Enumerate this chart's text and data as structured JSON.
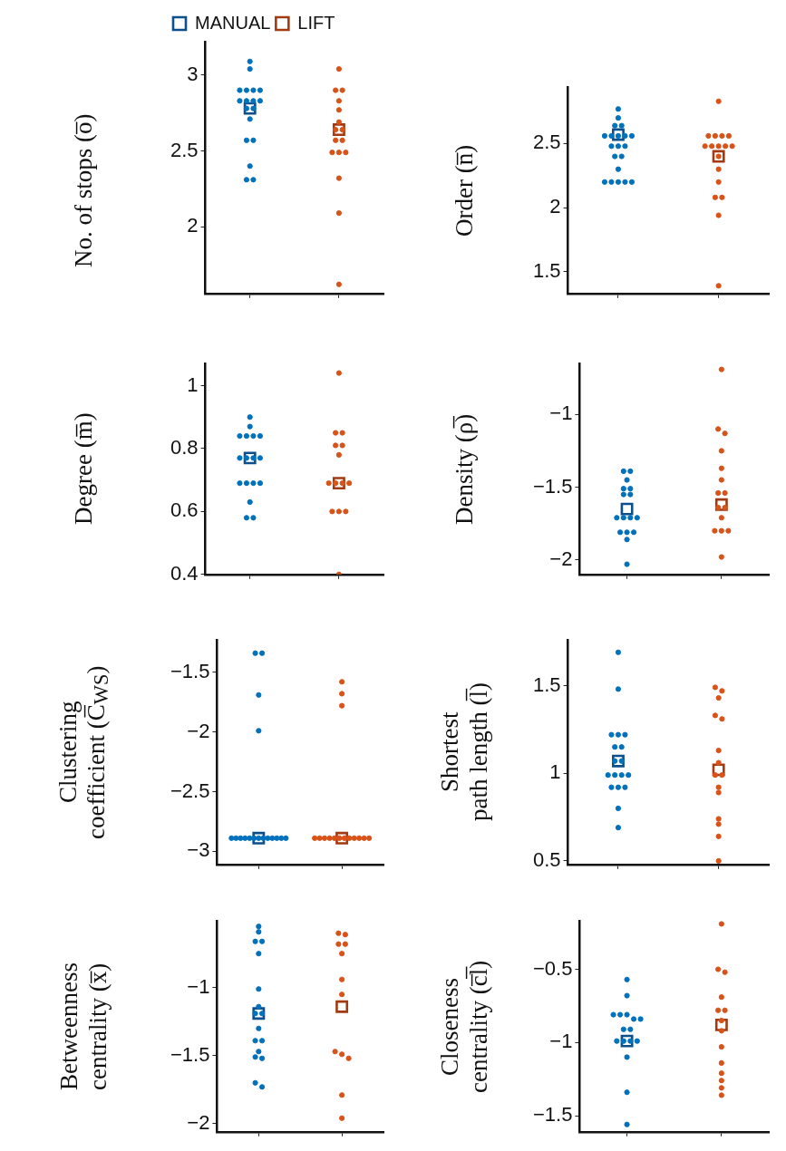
{
  "chart_data": [
    {
      "type": "scatter",
      "ylabel": "No. of stops (o̅)",
      "categories": [
        null,
        null
      ],
      "ylim": [
        1.56,
        3.22
      ],
      "yticks": [
        2,
        2.5,
        3
      ],
      "tick_labels": "y",
      "legend": "top",
      "series": [
        {
          "colors": [
            "#0072bd",
            "#d95319"
          ],
          "marker": "circle",
          "values": [
            3.09,
            3.04
          ]
        },
        {
          "colors": [
            "#0072bd",
            "#d95319"
          ],
          "marker": "circle",
          "values": [
            3.04,
            2.9
          ]
        },
        {
          "colors": [
            "#0072bd",
            "#d95319"
          ],
          "marker": "circle",
          "values": [
            2.9,
            2.9
          ]
        },
        {
          "colors": [
            "#0072bd",
            "#d95319"
          ],
          "marker": "circle",
          "values": [
            2.9,
            2.83
          ]
        },
        {
          "colors": [
            "#0072bd",
            "#d95319"
          ],
          "marker": "circle",
          "values": [
            2.9,
            2.77
          ]
        },
        {
          "colors": [
            "#0072bd",
            "#d95319"
          ],
          "marker": "circle",
          "values": [
            2.9,
            2.69
          ]
        },
        {
          "colors": [
            "#0072bd",
            "#d95319"
          ],
          "marker": "circle",
          "values": [
            2.83,
            2.64
          ]
        },
        {
          "colors": [
            "#0072bd",
            "#d95319"
          ],
          "marker": "circle",
          "values": [
            2.83,
            2.64
          ]
        },
        {
          "colors": [
            "#0072bd",
            "#d95319"
          ],
          "marker": "circle",
          "values": [
            2.83,
            2.57
          ]
        },
        {
          "colors": [
            "#0072bd",
            "#d95319"
          ],
          "marker": "circle",
          "values": [
            2.83,
            2.57
          ]
        },
        {
          "colors": [
            "#0072bd",
            "#d95319"
          ],
          "marker": "circle",
          "values": [
            2.78,
            2.49
          ]
        },
        {
          "colors": [
            "#0072bd",
            "#d95319"
          ],
          "marker": "circle",
          "values": [
            2.78,
            2.49
          ]
        },
        {
          "colors": [
            "#0072bd",
            "#d95319"
          ],
          "marker": "circle",
          "values": [
            2.71,
            2.49
          ]
        },
        {
          "colors": [
            "#0072bd",
            "#d95319"
          ],
          "marker": "circle",
          "values": [
            2.57,
            2.32
          ]
        },
        {
          "colors": [
            "#0072bd",
            "#d95319"
          ],
          "marker": "circle",
          "values": [
            2.57,
            2.09
          ]
        },
        {
          "colors": [
            "#0072bd",
            "#d95319"
          ],
          "marker": "circle",
          "values": [
            2.4,
            1.62
          ]
        },
        {
          "colors": [
            "#0072bd",
            "#d95319"
          ],
          "marker": "circle",
          "values": [
            2.31,
            null
          ]
        },
        {
          "colors": [
            "#0072bd",
            "#d95319"
          ],
          "marker": "circle",
          "values": [
            2.31,
            null
          ]
        },
        {
          "name": "MANUAL",
          "color": "#0b4f8c",
          "marker": "square",
          "values": [
            2.78,
            null
          ]
        },
        {
          "name": "LIFT",
          "color": "#a33a12",
          "marker": "square",
          "values": [
            null,
            2.64
          ]
        }
      ]
    },
    {
      "type": "scatter",
      "ylabel": "Order (n̅)",
      "categories": [
        null,
        null
      ],
      "ylim": [
        1.33,
        2.94
      ],
      "yticks": [
        1.5,
        2,
        2.5
      ],
      "tick_labels": "y",
      "series": [
        {
          "colors": [
            "#0072bd",
            "#d95319"
          ],
          "marker": "circle",
          "values": [
            2.77,
            2.83
          ]
        },
        {
          "colors": [
            "#0072bd",
            "#d95319"
          ],
          "marker": "circle",
          "values": [
            2.7,
            2.56
          ]
        },
        {
          "colors": [
            "#0072bd",
            "#d95319"
          ],
          "marker": "circle",
          "values": [
            2.64,
            2.56
          ]
        },
        {
          "colors": [
            "#0072bd",
            "#d95319"
          ],
          "marker": "circle",
          "values": [
            2.64,
            2.56
          ]
        },
        {
          "colors": [
            "#0072bd",
            "#d95319"
          ],
          "marker": "circle",
          "values": [
            2.56,
            2.56
          ]
        },
        {
          "colors": [
            "#0072bd",
            "#d95319"
          ],
          "marker": "circle",
          "values": [
            2.56,
            2.48
          ]
        },
        {
          "colors": [
            "#0072bd",
            "#d95319"
          ],
          "marker": "circle",
          "values": [
            2.56,
            2.48
          ]
        },
        {
          "colors": [
            "#0072bd",
            "#d95319"
          ],
          "marker": "circle",
          "values": [
            2.56,
            2.48
          ]
        },
        {
          "colors": [
            "#0072bd",
            "#d95319"
          ],
          "marker": "circle",
          "values": [
            2.56,
            2.48
          ]
        },
        {
          "colors": [
            "#0072bd",
            "#d95319"
          ],
          "marker": "circle",
          "values": [
            2.48,
            2.48
          ]
        },
        {
          "colors": [
            "#0072bd",
            "#d95319"
          ],
          "marker": "circle",
          "values": [
            2.48,
            2.4
          ]
        },
        {
          "colors": [
            "#0072bd",
            "#d95319"
          ],
          "marker": "circle",
          "values": [
            2.48,
            2.3
          ]
        },
        {
          "colors": [
            "#0072bd",
            "#d95319"
          ],
          "marker": "circle",
          "values": [
            2.4,
            2.2
          ]
        },
        {
          "colors": [
            "#0072bd",
            "#d95319"
          ],
          "marker": "circle",
          "values": [
            2.4,
            2.08
          ]
        },
        {
          "colors": [
            "#0072bd",
            "#d95319"
          ],
          "marker": "circle",
          "values": [
            2.3,
            2.08
          ]
        },
        {
          "colors": [
            "#0072bd",
            "#d95319"
          ],
          "marker": "circle",
          "values": [
            2.2,
            1.94
          ]
        },
        {
          "colors": [
            "#0072bd",
            "#d95319"
          ],
          "marker": "circle",
          "values": [
            2.2,
            1.39
          ]
        },
        {
          "colors": [
            "#0072bd",
            "#d95319"
          ],
          "marker": "circle",
          "values": [
            2.2,
            null
          ]
        },
        {
          "colors": [
            "#0072bd",
            "#d95319"
          ],
          "marker": "circle",
          "values": [
            2.2,
            null
          ]
        },
        {
          "colors": [
            "#0072bd",
            "#d95319"
          ],
          "marker": "circle",
          "values": [
            2.2,
            null
          ]
        },
        {
          "color": "#0b4f8c",
          "marker": "square",
          "values": [
            2.57,
            null
          ]
        },
        {
          "color": "#a33a12",
          "marker": "square",
          "values": [
            null,
            2.4
          ]
        }
      ]
    },
    {
      "type": "scatter",
      "ylabel": "Degree (m̅)",
      "categories": [
        null,
        null
      ],
      "ylim": [
        0.4,
        1.07
      ],
      "yticks": [
        0.4,
        0.6,
        0.8,
        1
      ],
      "tick_labels": "y",
      "series": [
        {
          "colors": [
            "#0072bd",
            "#d95319"
          ],
          "marker": "circle",
          "values": [
            0.9,
            1.04
          ]
        },
        {
          "colors": [
            "#0072bd",
            "#d95319"
          ],
          "marker": "circle",
          "values": [
            0.87,
            0.85
          ]
        },
        {
          "colors": [
            "#0072bd",
            "#d95319"
          ],
          "marker": "circle",
          "values": [
            0.84,
            0.85
          ]
        },
        {
          "colors": [
            "#0072bd",
            "#d95319"
          ],
          "marker": "circle",
          "values": [
            0.84,
            0.81
          ]
        },
        {
          "colors": [
            "#0072bd",
            "#d95319"
          ],
          "marker": "circle",
          "values": [
            0.84,
            0.81
          ]
        },
        {
          "colors": [
            "#0072bd",
            "#d95319"
          ],
          "marker": "circle",
          "values": [
            0.84,
            0.78
          ]
        },
        {
          "colors": [
            "#0072bd",
            "#d95319"
          ],
          "marker": "circle",
          "values": [
            0.77,
            0.69
          ]
        },
        {
          "colors": [
            "#0072bd",
            "#d95319"
          ],
          "marker": "circle",
          "values": [
            0.77,
            0.69
          ]
        },
        {
          "colors": [
            "#0072bd",
            "#d95319"
          ],
          "marker": "circle",
          "values": [
            0.77,
            0.69
          ]
        },
        {
          "colors": [
            "#0072bd",
            "#d95319"
          ],
          "marker": "circle",
          "values": [
            0.77,
            0.69
          ]
        },
        {
          "colors": [
            "#0072bd",
            "#d95319"
          ],
          "marker": "circle",
          "values": [
            0.69,
            0.6
          ]
        },
        {
          "colors": [
            "#0072bd",
            "#d95319"
          ],
          "marker": "circle",
          "values": [
            0.69,
            0.6
          ]
        },
        {
          "colors": [
            "#0072bd",
            "#d95319"
          ],
          "marker": "circle",
          "values": [
            0.69,
            0.6
          ]
        },
        {
          "colors": [
            "#0072bd",
            "#d95319"
          ],
          "marker": "circle",
          "values": [
            0.69,
            0.4
          ]
        },
        {
          "colors": [
            "#0072bd",
            "#d95319"
          ],
          "marker": "circle",
          "values": [
            0.63,
            null
          ]
        },
        {
          "colors": [
            "#0072bd",
            "#d95319"
          ],
          "marker": "circle",
          "values": [
            0.58,
            null
          ]
        },
        {
          "colors": [
            "#0072bd",
            "#d95319"
          ],
          "marker": "circle",
          "values": [
            0.58,
            null
          ]
        },
        {
          "color": "#0b4f8c",
          "marker": "square",
          "values": [
            0.77,
            null
          ]
        },
        {
          "color": "#a33a12",
          "marker": "square",
          "values": [
            null,
            0.69
          ]
        }
      ]
    },
    {
      "type": "scatter",
      "ylabel": "Density (ρ̅)",
      "categories": [
        null,
        null
      ],
      "ylim": [
        -2.1,
        -0.65
      ],
      "yticks": [
        -2,
        -1.5,
        -1
      ],
      "tick_labels": "y",
      "series": [
        {
          "colors": [
            "#0072bd",
            "#d95319"
          ],
          "marker": "circle",
          "values": [
            -1.39,
            -0.69
          ]
        },
        {
          "colors": [
            "#0072bd",
            "#d95319"
          ],
          "marker": "circle",
          "values": [
            -1.39,
            -1.1
          ]
        },
        {
          "colors": [
            "#0072bd",
            "#d95319"
          ],
          "marker": "circle",
          "values": [
            -1.45,
            -1.13
          ]
        },
        {
          "colors": [
            "#0072bd",
            "#d95319"
          ],
          "marker": "circle",
          "values": [
            -1.51,
            -1.25
          ]
        },
        {
          "colors": [
            "#0072bd",
            "#d95319"
          ],
          "marker": "circle",
          "values": [
            -1.51,
            -1.37
          ]
        },
        {
          "colors": [
            "#0072bd",
            "#d95319"
          ],
          "marker": "circle",
          "values": [
            -1.55,
            -1.45
          ]
        },
        {
          "colors": [
            "#0072bd",
            "#d95319"
          ],
          "marker": "circle",
          "values": [
            -1.55,
            -1.54
          ]
        },
        {
          "colors": [
            "#0072bd",
            "#d95319"
          ],
          "marker": "circle",
          "values": [
            -1.71,
            -1.54
          ]
        },
        {
          "colors": [
            "#0072bd",
            "#d95319"
          ],
          "marker": "circle",
          "values": [
            -1.71,
            -1.64
          ]
        },
        {
          "colors": [
            "#0072bd",
            "#d95319"
          ],
          "marker": "circle",
          "values": [
            -1.71,
            -1.64
          ]
        },
        {
          "colors": [
            "#0072bd",
            "#d95319"
          ],
          "marker": "circle",
          "values": [
            -1.71,
            -1.71
          ]
        },
        {
          "colors": [
            "#0072bd",
            "#d95319"
          ],
          "marker": "circle",
          "values": [
            -1.81,
            -1.8
          ]
        },
        {
          "colors": [
            "#0072bd",
            "#d95319"
          ],
          "marker": "circle",
          "values": [
            -1.81,
            -1.8
          ]
        },
        {
          "colors": [
            "#0072bd",
            "#d95319"
          ],
          "marker": "circle",
          "values": [
            -1.81,
            -1.8
          ]
        },
        {
          "colors": [
            "#0072bd",
            "#d95319"
          ],
          "marker": "circle",
          "values": [
            -1.86,
            -1.98
          ]
        },
        {
          "colors": [
            "#0072bd",
            "#d95319"
          ],
          "marker": "circle",
          "values": [
            -2.03,
            null
          ]
        },
        {
          "color": "#0b4f8c",
          "marker": "square",
          "values": [
            -1.65,
            null
          ]
        },
        {
          "color": "#a33a12",
          "marker": "square",
          "values": [
            null,
            -1.62
          ]
        }
      ]
    },
    {
      "type": "scatter",
      "ylabel": "Clustering\ncoefficient (C̅$_{WS}$)",
      "categories": [
        null,
        null
      ],
      "ylim": [
        -3.11,
        -1.23
      ],
      "yticks": [
        -3,
        -2.5,
        -2,
        -1.5
      ],
      "tick_labels": "y",
      "series": [
        {
          "colors": [
            "#0072bd",
            "#d95319"
          ],
          "marker": "circle",
          "values": [
            -1.34,
            -1.58
          ]
        },
        {
          "colors": [
            "#0072bd",
            "#d95319"
          ],
          "marker": "circle",
          "values": [
            -1.34,
            -1.68
          ]
        },
        {
          "colors": [
            "#0072bd",
            "#d95319"
          ],
          "marker": "circle",
          "values": [
            -1.69,
            -1.78
          ]
        },
        {
          "colors": [
            "#0072bd",
            "#d95319"
          ],
          "marker": "circle",
          "values": [
            -1.99,
            -2.89
          ]
        },
        {
          "colors": [
            "#0072bd",
            "#d95319"
          ],
          "marker": "circle",
          "values": [
            -2.89,
            -2.89
          ]
        },
        {
          "colors": [
            "#0072bd",
            "#d95319"
          ],
          "marker": "circle",
          "values": [
            -2.89,
            -2.89
          ]
        },
        {
          "colors": [
            "#0072bd",
            "#d95319"
          ],
          "marker": "circle",
          "values": [
            -2.89,
            -2.89
          ]
        },
        {
          "colors": [
            "#0072bd",
            "#d95319"
          ],
          "marker": "circle",
          "values": [
            -2.89,
            -2.89
          ]
        },
        {
          "colors": [
            "#0072bd",
            "#d95319"
          ],
          "marker": "circle",
          "values": [
            -2.89,
            -2.89
          ]
        },
        {
          "colors": [
            "#0072bd",
            "#d95319"
          ],
          "marker": "circle",
          "values": [
            -2.89,
            -2.89
          ]
        },
        {
          "colors": [
            "#0072bd",
            "#d95319"
          ],
          "marker": "circle",
          "values": [
            -2.89,
            -2.89
          ]
        },
        {
          "colors": [
            "#0072bd",
            "#d95319"
          ],
          "marker": "circle",
          "values": [
            -2.89,
            -2.89
          ]
        },
        {
          "colors": [
            "#0072bd",
            "#d95319"
          ],
          "marker": "circle",
          "values": [
            -2.89,
            -2.89
          ]
        },
        {
          "colors": [
            "#0072bd",
            "#d95319"
          ],
          "marker": "circle",
          "values": [
            -2.89,
            -2.89
          ]
        },
        {
          "colors": [
            "#0072bd",
            "#d95319"
          ],
          "marker": "circle",
          "values": [
            -2.89,
            -2.89
          ]
        },
        {
          "colors": [
            "#0072bd",
            "#d95319"
          ],
          "marker": "circle",
          "values": [
            -2.89,
            null
          ]
        },
        {
          "colors": [
            "#0072bd",
            "#d95319"
          ],
          "marker": "circle",
          "values": [
            -2.89,
            null
          ]
        },
        {
          "color": "#0b4f8c",
          "marker": "square",
          "values": [
            -2.89,
            null
          ]
        },
        {
          "color": "#a33a12",
          "marker": "square",
          "values": [
            null,
            -2.89
          ]
        }
      ]
    },
    {
      "type": "scatter",
      "ylabel": "Shortest\npath length (l̅)",
      "categories": [
        null,
        null
      ],
      "ylim": [
        0.48,
        1.76
      ],
      "yticks": [
        0.5,
        1,
        1.5
      ],
      "tick_labels": "y",
      "series": [
        {
          "colors": [
            "#0072bd",
            "#d95319"
          ],
          "marker": "circle",
          "values": [
            1.69,
            1.49
          ]
        },
        {
          "colors": [
            "#0072bd",
            "#d95319"
          ],
          "marker": "circle",
          "values": [
            1.48,
            1.47
          ]
        },
        {
          "colors": [
            "#0072bd",
            "#d95319"
          ],
          "marker": "circle",
          "values": [
            1.22,
            1.43
          ]
        },
        {
          "colors": [
            "#0072bd",
            "#d95319"
          ],
          "marker": "circle",
          "values": [
            1.22,
            1.33
          ]
        },
        {
          "colors": [
            "#0072bd",
            "#d95319"
          ],
          "marker": "circle",
          "values": [
            1.22,
            1.31
          ]
        },
        {
          "colors": [
            "#0072bd",
            "#d95319"
          ],
          "marker": "circle",
          "values": [
            1.15,
            1.13
          ]
        },
        {
          "colors": [
            "#0072bd",
            "#d95319"
          ],
          "marker": "circle",
          "values": [
            1.15,
            1.06
          ]
        },
        {
          "colors": [
            "#0072bd",
            "#d95319"
          ],
          "marker": "circle",
          "values": [
            1.07,
            0.99
          ]
        },
        {
          "colors": [
            "#0072bd",
            "#d95319"
          ],
          "marker": "circle",
          "values": [
            1.07,
            0.99
          ]
        },
        {
          "colors": [
            "#0072bd",
            "#d95319"
          ],
          "marker": "circle",
          "values": [
            0.99,
            0.92
          ]
        },
        {
          "colors": [
            "#0072bd",
            "#d95319"
          ],
          "marker": "circle",
          "values": [
            0.99,
            0.89
          ]
        },
        {
          "colors": [
            "#0072bd",
            "#d95319"
          ],
          "marker": "circle",
          "values": [
            0.99,
            0.74
          ]
        },
        {
          "colors": [
            "#0072bd",
            "#d95319"
          ],
          "marker": "circle",
          "values": [
            0.99,
            0.71
          ]
        },
        {
          "colors": [
            "#0072bd",
            "#d95319"
          ],
          "marker": "circle",
          "values": [
            0.92,
            0.64
          ]
        },
        {
          "colors": [
            "#0072bd",
            "#d95319"
          ],
          "marker": "circle",
          "values": [
            0.92,
            0.5
          ]
        },
        {
          "colors": [
            "#0072bd",
            "#d95319"
          ],
          "marker": "circle",
          "values": [
            0.92,
            null
          ]
        },
        {
          "colors": [
            "#0072bd",
            "#d95319"
          ],
          "marker": "circle",
          "values": [
            0.8,
            null
          ]
        },
        {
          "colors": [
            "#0072bd",
            "#d95319"
          ],
          "marker": "circle",
          "values": [
            0.69,
            null
          ]
        },
        {
          "color": "#0b4f8c",
          "marker": "square",
          "values": [
            1.07,
            null
          ]
        },
        {
          "color": "#a33a12",
          "marker": "square",
          "values": [
            null,
            1.02
          ]
        }
      ]
    },
    {
      "type": "scatter",
      "ylabel": "Betweenness\ncentrality (x̅)",
      "categories": [
        null,
        null
      ],
      "ylim": [
        -2.06,
        -0.51
      ],
      "yticks": [
        -2,
        -1.5,
        -1
      ],
      "tick_labels": "y",
      "series": [
        {
          "colors": [
            "#0072bd",
            "#d95319"
          ],
          "marker": "circle",
          "values": [
            -0.55,
            -0.61
          ]
        },
        {
          "colors": [
            "#0072bd",
            "#d95319"
          ],
          "marker": "circle",
          "values": [
            -0.59,
            -0.6
          ]
        },
        {
          "colors": [
            "#0072bd",
            "#d95319"
          ],
          "marker": "circle",
          "values": [
            -0.66,
            -0.68
          ]
        },
        {
          "colors": [
            "#0072bd",
            "#d95319"
          ],
          "marker": "circle",
          "values": [
            -0.66,
            -0.68
          ]
        },
        {
          "colors": [
            "#0072bd",
            "#d95319"
          ],
          "marker": "circle",
          "values": [
            -0.75,
            -0.75
          ]
        },
        {
          "colors": [
            "#0072bd",
            "#d95319"
          ],
          "marker": "circle",
          "values": [
            -1.01,
            -0.94
          ]
        },
        {
          "colors": [
            "#0072bd",
            "#d95319"
          ],
          "marker": "circle",
          "values": [
            -1.14,
            -1.05
          ]
        },
        {
          "colors": [
            "#0072bd",
            "#d95319"
          ],
          "marker": "circle",
          "values": [
            -1.19,
            -1.47
          ]
        },
        {
          "colors": [
            "#0072bd",
            "#d95319"
          ],
          "marker": "circle",
          "values": [
            -1.19,
            -1.49
          ]
        },
        {
          "colors": [
            "#0072bd",
            "#d95319"
          ],
          "marker": "circle",
          "values": [
            -1.3,
            -1.52
          ]
        },
        {
          "colors": [
            "#0072bd",
            "#d95319"
          ],
          "marker": "circle",
          "values": [
            -1.39,
            -1.79
          ]
        },
        {
          "colors": [
            "#0072bd",
            "#d95319"
          ],
          "marker": "circle",
          "values": [
            -1.39,
            -1.96
          ]
        },
        {
          "colors": [
            "#0072bd",
            "#d95319"
          ],
          "marker": "circle",
          "values": [
            -1.47,
            null
          ]
        },
        {
          "colors": [
            "#0072bd",
            "#d95319"
          ],
          "marker": "circle",
          "values": [
            -1.51,
            null
          ]
        },
        {
          "colors": [
            "#0072bd",
            "#d95319"
          ],
          "marker": "circle",
          "values": [
            -1.52,
            null
          ]
        },
        {
          "colors": [
            "#0072bd",
            "#d95319"
          ],
          "marker": "circle",
          "values": [
            -1.7,
            null
          ]
        },
        {
          "colors": [
            "#0072bd",
            "#d95319"
          ],
          "marker": "circle",
          "values": [
            -1.73,
            null
          ]
        },
        {
          "color": "#0b4f8c",
          "marker": "square",
          "values": [
            -1.19,
            null
          ]
        },
        {
          "color": "#a33a12",
          "marker": "square",
          "values": [
            null,
            -1.14
          ]
        }
      ]
    },
    {
      "type": "scatter",
      "ylabel": "Closeness\ncentrality (c̅l̅)",
      "categories": [
        null,
        null
      ],
      "ylim": [
        -1.61,
        -0.17
      ],
      "yticks": [
        -1.5,
        -1,
        -0.5
      ],
      "tick_labels": "y",
      "series": [
        {
          "colors": [
            "#0072bd",
            "#d95319"
          ],
          "marker": "circle",
          "values": [
            -0.57,
            -0.19
          ]
        },
        {
          "colors": [
            "#0072bd",
            "#d95319"
          ],
          "marker": "circle",
          "values": [
            -0.68,
            -0.5
          ]
        },
        {
          "colors": [
            "#0072bd",
            "#d95319"
          ],
          "marker": "circle",
          "values": [
            -0.81,
            -0.52
          ]
        },
        {
          "colors": [
            "#0072bd",
            "#d95319"
          ],
          "marker": "circle",
          "values": [
            -0.81,
            -0.69
          ]
        },
        {
          "colors": [
            "#0072bd",
            "#d95319"
          ],
          "marker": "circle",
          "values": [
            -0.81,
            -0.78
          ]
        },
        {
          "colors": [
            "#0072bd",
            "#d95319"
          ],
          "marker": "circle",
          "values": [
            -0.84,
            -0.78
          ]
        },
        {
          "colors": [
            "#0072bd",
            "#d95319"
          ],
          "marker": "circle",
          "values": [
            -0.84,
            -0.85
          ]
        },
        {
          "colors": [
            "#0072bd",
            "#d95319"
          ],
          "marker": "circle",
          "values": [
            -0.91,
            -0.92
          ]
        },
        {
          "colors": [
            "#0072bd",
            "#d95319"
          ],
          "marker": "circle",
          "values": [
            -0.91,
            -1.03
          ]
        },
        {
          "colors": [
            "#0072bd",
            "#d95319"
          ],
          "marker": "circle",
          "values": [
            -0.99,
            -1.14
          ]
        },
        {
          "colors": [
            "#0072bd",
            "#d95319"
          ],
          "marker": "circle",
          "values": [
            -0.99,
            -1.21
          ]
        },
        {
          "colors": [
            "#0072bd",
            "#d95319"
          ],
          "marker": "circle",
          "values": [
            -0.99,
            -1.26
          ]
        },
        {
          "colors": [
            "#0072bd",
            "#d95319"
          ],
          "marker": "circle",
          "values": [
            -0.99,
            -1.31
          ]
        },
        {
          "colors": [
            "#0072bd",
            "#d95319"
          ],
          "marker": "circle",
          "values": [
            -1.1,
            -1.36
          ]
        },
        {
          "colors": [
            "#0072bd",
            "#d95319"
          ],
          "marker": "circle",
          "values": [
            -1.34,
            null
          ]
        },
        {
          "colors": [
            "#0072bd",
            "#d95319"
          ],
          "marker": "circle",
          "values": [
            -1.56,
            null
          ]
        },
        {
          "color": "#0b4f8c",
          "marker": "square",
          "values": [
            -0.99,
            null
          ]
        },
        {
          "color": "#a33a12",
          "marker": "square",
          "values": [
            null,
            -0.88
          ]
        }
      ]
    }
  ]
}
